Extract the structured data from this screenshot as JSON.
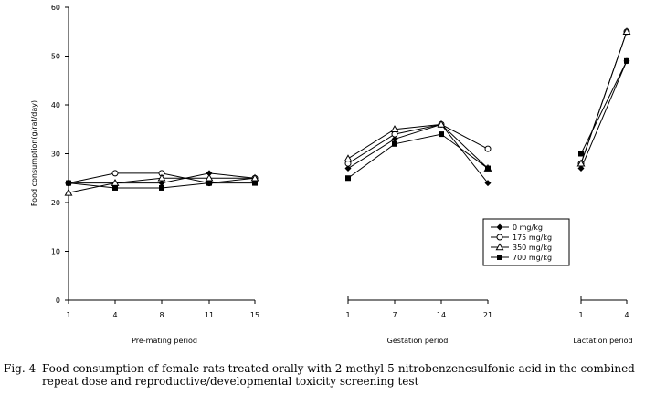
{
  "chart_data": {
    "type": "line",
    "ylabel": "Food consumption(g/rat/day)",
    "ylim": [
      0,
      60
    ],
    "yticks": [
      "0",
      "10",
      "20",
      "30",
      "40",
      "50",
      "60"
    ],
    "grid": false,
    "legend_position": "right",
    "series_names": [
      "0 mg/kg",
      "175 mg/kg",
      "350 mg/kg",
      "700 mg/kg"
    ],
    "panels": [
      {
        "label": "Pre-mating period",
        "x": [
          "1",
          "4",
          "8",
          "11",
          "15"
        ],
        "series": [
          {
            "name": "0 mg/kg",
            "marker": "diamond-filled",
            "values": [
              24,
              24,
              24,
              26,
              25
            ]
          },
          {
            "name": "175 mg/kg",
            "marker": "circle-open",
            "values": [
              24,
              26,
              26,
              24,
              25
            ]
          },
          {
            "name": "350 mg/kg",
            "marker": "triangle-open",
            "values": [
              22,
              24,
              25,
              25,
              25
            ]
          },
          {
            "name": "700 mg/kg",
            "marker": "square-filled",
            "values": [
              24,
              23,
              23,
              24,
              24
            ]
          }
        ]
      },
      {
        "label": "Gestation  period",
        "x": [
          "1",
          "7",
          "14",
          "21"
        ],
        "series": [
          {
            "name": "0 mg/kg",
            "marker": "diamond-filled",
            "values": [
              27,
              33,
              36,
              24
            ]
          },
          {
            "name": "175 mg/kg",
            "marker": "circle-open",
            "values": [
              28,
              34,
              36,
              31
            ]
          },
          {
            "name": "350 mg/kg",
            "marker": "triangle-open",
            "values": [
              29,
              35,
              36,
              27
            ]
          },
          {
            "name": "700 mg/kg",
            "marker": "square-filled",
            "values": [
              25,
              32,
              34,
              27
            ]
          }
        ]
      },
      {
        "label": "Lactation period",
        "x": [
          "1",
          "4"
        ],
        "series": [
          {
            "name": "0 mg/kg",
            "marker": "diamond-filled",
            "values": [
              27,
              49
            ]
          },
          {
            "name": "175 mg/kg",
            "marker": "circle-open",
            "values": [
              28,
              55
            ]
          },
          {
            "name": "350 mg/kg",
            "marker": "triangle-open",
            "values": [
              28,
              55
            ]
          },
          {
            "name": "700 mg/kg",
            "marker": "square-filled",
            "values": [
              30,
              49
            ]
          }
        ]
      }
    ]
  },
  "caption": {
    "label": "Fig. 4",
    "text": "Food consumption of female rats treated orally with 2-methyl-5-nitrobenzenesulfonic acid in the combined repeat dose and reproductive/developmental toxicity screening test"
  }
}
